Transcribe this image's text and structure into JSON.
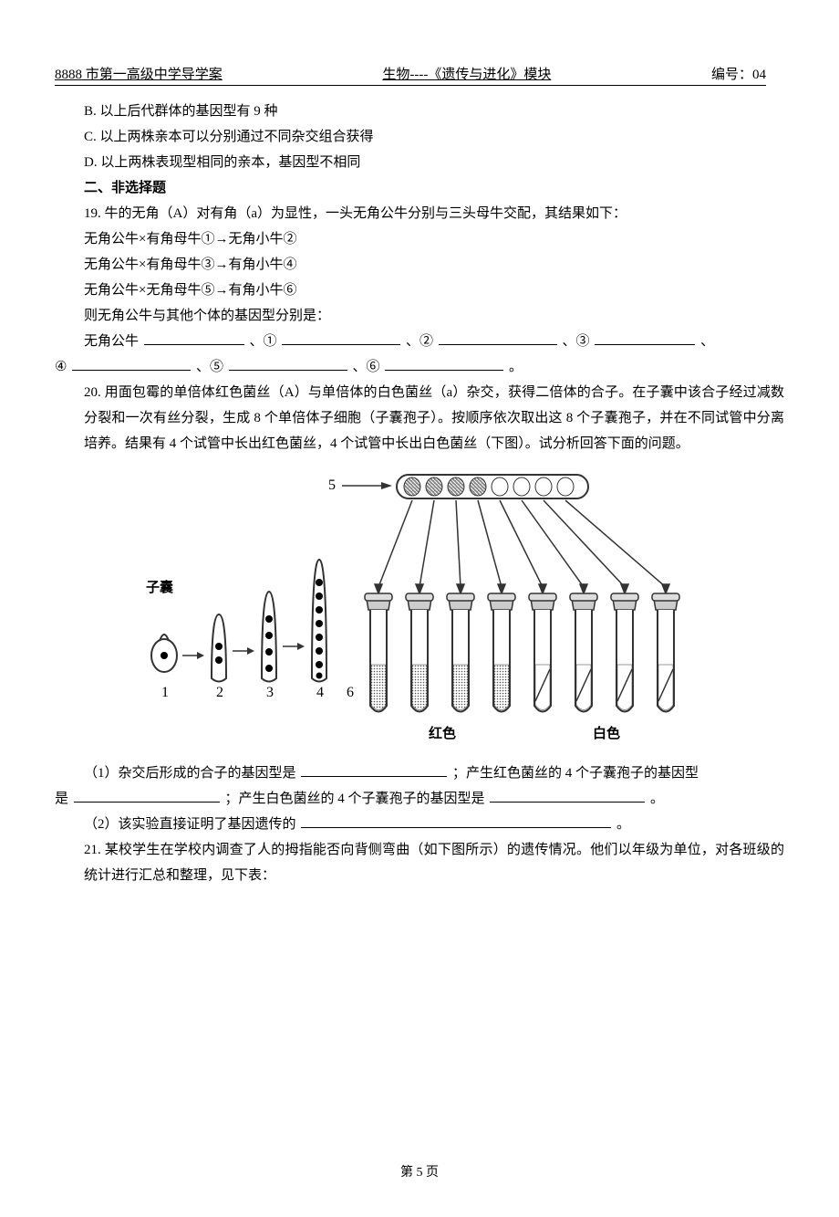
{
  "header": {
    "left": "8888 市第一高级中学导学案",
    "mid": "生物----《遗传与进化》模块",
    "right": "编号：04"
  },
  "options": {
    "B": "B. 以上后代群体的基因型有 9 种",
    "C": "C. 以上两株亲本可以分别通过不同杂交组合获得",
    "D": "D. 以上两株表现型相同的亲本，基因型不相同"
  },
  "section2_title": "二、非选择题",
  "q19": {
    "stem": "19. 牛的无角（A）对有角（a）为显性，一头无角公牛分别与三头母牛交配，其结果如下：",
    "l1": "无角公牛×有角母牛①→无角小牛②",
    "l2": "无角公牛×有角母牛③→有角小牛④",
    "l3": "无角公牛×无角母牛⑤→有角小牛⑥",
    "l4": "则无角公牛与其他个体的基因型分别是：",
    "ans_prefix": "无角公牛",
    "c1": "、①",
    "c2": "、②",
    "c3": "、③",
    "c4": "、",
    "row2_a": "④",
    "row2_b": "、⑤",
    "row2_c": "、⑥",
    "row2_d": "。"
  },
  "q20": {
    "stem": "20. 用面包霉的单倍体红色菌丝（A）与单倍体的白色菌丝（a）杂交，获得二倍体的合子。在子囊中该合子经过减数分裂和一次有丝分裂，生成 8 个单倍体子细胞（子囊孢子）。按顺序依次取出这 8 个子囊孢子，并在不同试管中分离培养。结果有 4 个试管中长出红色菌丝，4 个试管中长出白色菌丝（下图）。试分析回答下面的问题。",
    "sub1_a": "（1）杂交后形成的合子的基因型是",
    "sub1_b": "；产生红色菌丝的 4 个子囊孢子的基因型",
    "sub1_c": "是",
    "sub1_d": "；产生白色菌丝的 4 个子囊孢子的基因型是",
    "sub1_e": "。",
    "sub2_a": "（2）该实验直接证明了基因遗传的",
    "sub2_b": "。"
  },
  "q21": {
    "stem": "21. 某校学生在学校内调查了人的拇指能否向背侧弯曲（如下图所示）的遗传情况。他们以年级为单位，对各班级的统计进行汇总和整理，见下表："
  },
  "figure": {
    "zinang_label": "子囊",
    "num1": "1",
    "num2": "2",
    "num3": "3",
    "num4": "4",
    "num5": "5",
    "num6": "6",
    "red_label": "红色",
    "white_label": "白色",
    "colors": {
      "stroke": "#333333",
      "dark_fill": "#555555",
      "light_fill": "#ffffff",
      "hatch": "#888888",
      "bg": "#ffffff"
    },
    "tube_count": 8,
    "red_tubes": 4,
    "white_tubes": 4
  },
  "footer": "第 5 页"
}
